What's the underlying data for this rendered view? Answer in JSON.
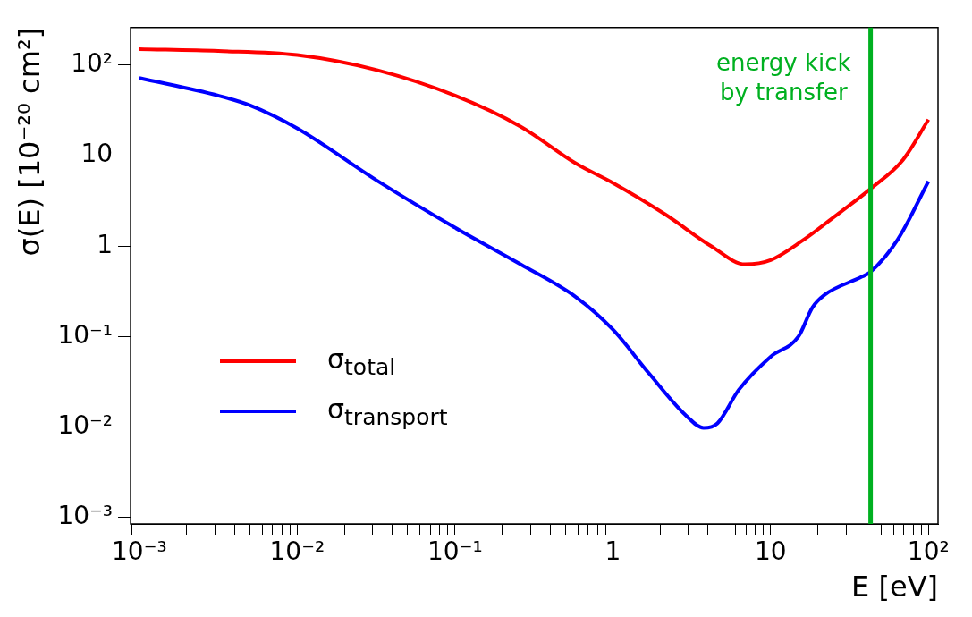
{
  "chart_data": {
    "type": "line",
    "xlabel": "E [eV]",
    "ylabel": "σ(E) [10⁻²⁰ cm²]",
    "log": "xy",
    "grid": false,
    "legend": "bottom left",
    "marker": "none",
    "line_style": "solid",
    "xlim": [
      0.00088,
      115
    ],
    "ylim": [
      0.00085,
      260
    ],
    "xticks": [
      {
        "value": 0.0009,
        "label": null
      },
      {
        "value": 0.001,
        "label": "10⁻³"
      },
      {
        "value": 0.002,
        "label": null
      },
      {
        "value": 0.003,
        "label": null
      },
      {
        "value": 0.004,
        "label": null
      },
      {
        "value": 0.005,
        "label": null
      },
      {
        "value": 0.006,
        "label": null
      },
      {
        "value": 0.007,
        "label": null
      },
      {
        "value": 0.008,
        "label": null
      },
      {
        "value": 0.009,
        "label": null
      },
      {
        "value": 0.01,
        "label": "10⁻²"
      },
      {
        "value": 0.02,
        "label": null
      },
      {
        "value": 0.03,
        "label": null
      },
      {
        "value": 0.04,
        "label": null
      },
      {
        "value": 0.05,
        "label": null
      },
      {
        "value": 0.06,
        "label": null
      },
      {
        "value": 0.07,
        "label": null
      },
      {
        "value": 0.08,
        "label": null
      },
      {
        "value": 0.09,
        "label": null
      },
      {
        "value": 0.1,
        "label": "10⁻¹"
      },
      {
        "value": 0.2,
        "label": null
      },
      {
        "value": 0.3,
        "label": null
      },
      {
        "value": 0.4,
        "label": null
      },
      {
        "value": 0.5,
        "label": null
      },
      {
        "value": 0.6,
        "label": null
      },
      {
        "value": 0.7,
        "label": null
      },
      {
        "value": 0.8,
        "label": null
      },
      {
        "value": 0.9,
        "label": null
      },
      1,
      {
        "value": 2,
        "label": null
      },
      {
        "value": 3,
        "label": null
      },
      {
        "value": 4,
        "label": null
      },
      {
        "value": 5,
        "label": null
      },
      {
        "value": 6,
        "label": null
      },
      {
        "value": 7,
        "label": null
      },
      {
        "value": 8,
        "label": null
      },
      {
        "value": 9,
        "label": null
      },
      10,
      {
        "value": 20,
        "label": null
      },
      {
        "value": 30,
        "label": null
      },
      {
        "value": 40,
        "label": null
      },
      {
        "value": 50,
        "label": null
      },
      {
        "value": 60,
        "label": null
      },
      {
        "value": 70,
        "label": null
      },
      {
        "value": 80,
        "label": null
      },
      {
        "value": 90,
        "label": null
      },
      {
        "value": 100,
        "label": "10²"
      }
    ],
    "yticks": [
      {
        "value": 0.001,
        "label": "10⁻³"
      },
      {
        "value": 0.01,
        "label": "10⁻²"
      },
      {
        "value": 0.1,
        "label": "10⁻¹"
      },
      1,
      10,
      {
        "value": 100,
        "label": "10²"
      }
    ],
    "series": [
      {
        "name": "σ$_{total}$",
        "color": "#ff0000",
        "x": [
          0.001,
          0.00316,
          0.01,
          0.032,
          0.1,
          0.26,
          0.59,
          1,
          2.15,
          4.2,
          6.9,
          10,
          15.8,
          27,
          43,
          69,
          100
        ],
        "values": [
          150,
          143,
          129,
          88,
          46,
          21,
          8.1,
          5.0,
          2.24,
          1.0,
          0.63,
          0.7,
          1.14,
          2.3,
          4.3,
          9,
          25
        ]
      },
      {
        "name": "σ$_{transport}$",
        "color": "#0000ff",
        "x": [
          0.001,
          0.00316,
          0.005,
          0.01,
          0.032,
          0.1,
          0.26,
          0.59,
          1,
          1.7,
          2.9,
          3.76,
          4.6,
          6.3,
          10,
          15,
          18.4,
          22,
          38,
          43,
          64,
          100
        ],
        "values": [
          72,
          46,
          36,
          20,
          5.3,
          1.6,
          0.63,
          0.27,
          0.12,
          0.039,
          0.0135,
          0.0098,
          0.011,
          0.026,
          0.06,
          0.1,
          0.21,
          0.29,
          0.46,
          0.52,
          1.19,
          5.2
        ]
      }
    ],
    "ref_lines": [
      {
        "axis": "x",
        "value": 43,
        "label": "energy kick\nby transfer",
        "color": "#00b020"
      }
    ]
  }
}
